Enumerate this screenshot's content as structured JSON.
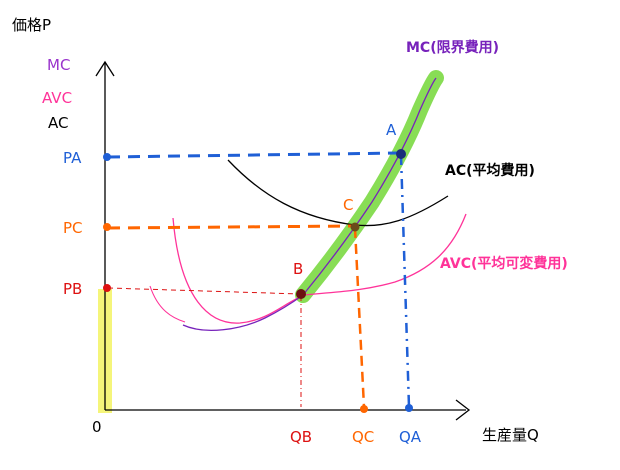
{
  "chart_data": {
    "type": "line",
    "title": "",
    "ylabel": "価格P",
    "xlabel": "生産量Q",
    "origin_label": "0",
    "legend": [
      {
        "label": "MC",
        "color": "#9933cc"
      },
      {
        "label": "AVC",
        "color": "#ff3399"
      },
      {
        "label": "AC",
        "color": "#000000"
      }
    ],
    "curves": {
      "mc": {
        "label": "MC(限界費用)",
        "color": "#7722bb",
        "highlight": "#88dd55"
      },
      "ac": {
        "label": "AC(平均費用)",
        "color": "#000000"
      },
      "avc": {
        "label": "AVC(平均可変費用)",
        "color": "#ff3399"
      }
    },
    "points": {
      "A": {
        "label": "A",
        "price": "PA",
        "quantity": "QA",
        "color": "#1f5fd6"
      },
      "B": {
        "label": "B",
        "price": "PB",
        "quantity": "QB",
        "color": "#dd1111"
      },
      "C": {
        "label": "C",
        "price": "PC",
        "quantity": "QC",
        "color": "#ff6600"
      }
    },
    "highlight_color": "#f5f57a"
  }
}
